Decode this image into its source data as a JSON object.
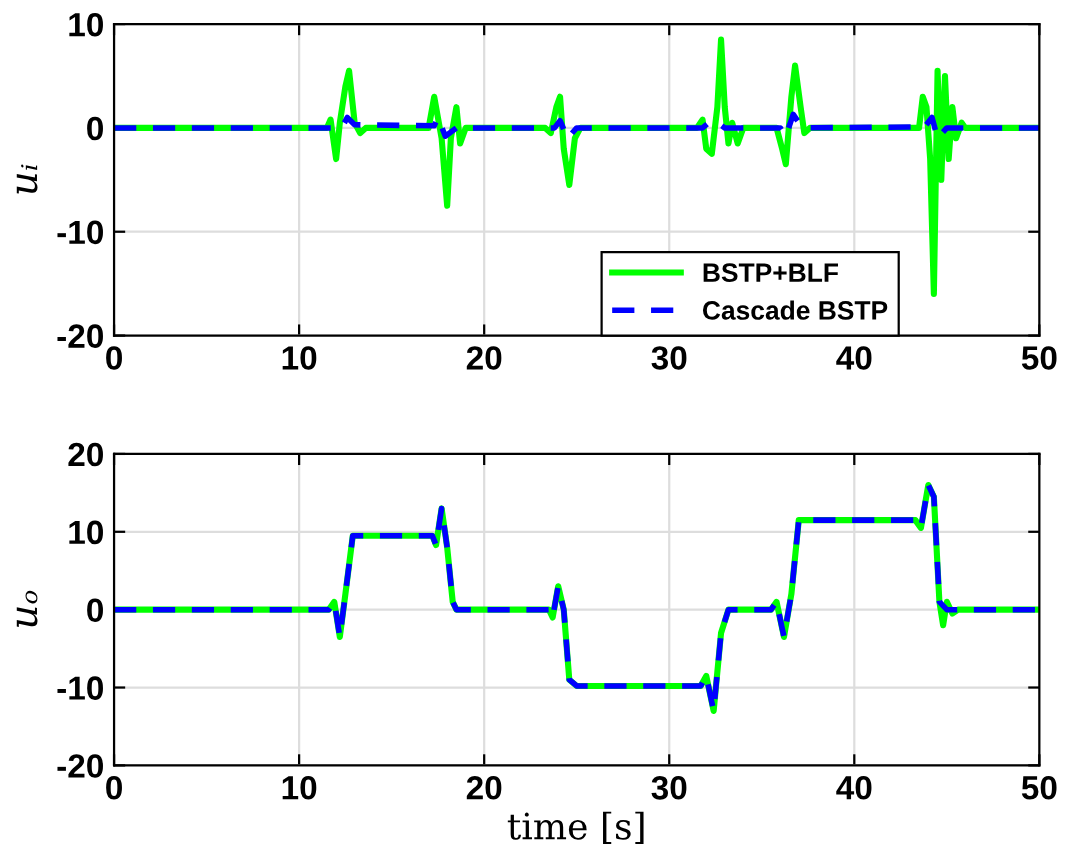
{
  "chart_data": [
    {
      "type": "line",
      "ylabel": "uᵢ",
      "xlim": [
        0,
        50
      ],
      "xticks": [
        0,
        10,
        20,
        30,
        40,
        50
      ],
      "ylim": [
        -20,
        10
      ],
      "yticks": [
        -20,
        -10,
        0,
        10
      ],
      "grid": true,
      "legend": "bottom right",
      "series": [
        {
          "name": "BSTP+BLF",
          "color": "#00ff00",
          "line_style": "solid",
          "x": [
            0,
            11.5,
            11.7,
            12.0,
            12.2,
            12.5,
            12.7,
            13.0,
            13.3,
            13.6,
            17.0,
            17.3,
            17.5,
            17.7,
            18.0,
            18.2,
            18.5,
            18.7,
            19.0,
            23.3,
            23.6,
            23.9,
            24.1,
            24.3,
            24.6,
            24.9,
            25.2,
            31.5,
            31.8,
            32.0,
            32.3,
            32.6,
            32.8,
            33.0,
            33.2,
            33.4,
            33.7,
            34.0,
            35.8,
            36.1,
            36.3,
            36.6,
            36.8,
            37.1,
            37.3,
            37.6,
            43.5,
            43.7,
            43.9,
            44.1,
            44.3,
            44.5,
            44.7,
            44.9,
            45.1,
            45.3,
            45.5,
            45.8,
            46.0,
            50
          ],
          "values": [
            0,
            0,
            0.8,
            -3,
            0.5,
            4,
            5.5,
            0.5,
            -0.5,
            0,
            0,
            3,
            1,
            -1,
            -7.5,
            -1,
            2,
            -1.5,
            0,
            0,
            -0.5,
            2,
            3,
            -2,
            -5.5,
            -1,
            0,
            0,
            0.8,
            -2,
            -2.5,
            2,
            8.5,
            2,
            -1.5,
            0.5,
            -1.5,
            0,
            0,
            -2,
            -3.5,
            3,
            6,
            2,
            -0.5,
            0,
            0,
            3,
            2,
            -3,
            -16,
            5.5,
            -5,
            5,
            -3,
            2,
            -1,
            0.5,
            0,
            0
          ]
        },
        {
          "name": "Cascade BSTP",
          "color": "#0000ff",
          "line_style": "dashed",
          "x": [
            0,
            12.3,
            12.6,
            13.0,
            17.3,
            17.5,
            17.9,
            18.5,
            23.8,
            24.1,
            24.5,
            25.0,
            31.8,
            32.2,
            32.6,
            33.0,
            36.0,
            36.3,
            36.7,
            37.2,
            43.8,
            44.2,
            44.5,
            45.0,
            50
          ],
          "values": [
            0,
            0,
            1,
            0.3,
            0.2,
            1,
            -0.8,
            0,
            0,
            0.7,
            -1,
            0,
            0,
            0.6,
            0.5,
            0,
            0,
            -0.8,
            1.3,
            0,
            0.1,
            1,
            -1,
            0,
            0
          ]
        }
      ]
    },
    {
      "type": "line",
      "ylabel": "uₒ",
      "xlabel": "time [s]",
      "xlim": [
        0,
        50
      ],
      "xticks": [
        0,
        10,
        20,
        30,
        40,
        50
      ],
      "ylim": [
        -20,
        20
      ],
      "yticks": [
        -20,
        -10,
        0,
        10,
        20
      ],
      "grid": true,
      "series": [
        {
          "color": "#00ff00",
          "line_style": "solid",
          "x": [
            0,
            11.6,
            11.9,
            12.2,
            12.5,
            12.9,
            13.5,
            17.2,
            17.4,
            17.7,
            18.0,
            18.3,
            18.5,
            23.5,
            23.7,
            24.0,
            24.3,
            24.6,
            25.0,
            31.7,
            32.0,
            32.4,
            32.8,
            33.2,
            35.5,
            35.8,
            36.2,
            36.6,
            37.0,
            43.3,
            43.6,
            44.0,
            44.3,
            44.6,
            44.8,
            45.0,
            45.3,
            45.6,
            50
          ],
          "values": [
            0,
            0,
            1,
            -3.5,
            2,
            9.5,
            9.5,
            9.5,
            8.3,
            13,
            8,
            1,
            0,
            0,
            -1,
            3,
            0,
            -9,
            -9.8,
            -9.8,
            -8.5,
            -13,
            -3,
            0,
            0,
            1,
            -3.5,
            2,
            11.5,
            11.5,
            10.5,
            16,
            14.5,
            1,
            -2,
            1,
            -0.5,
            0,
            0
          ]
        },
        {
          "color": "#0000ff",
          "line_style": "dashed",
          "x": [
            0,
            11.6,
            11.9,
            12.2,
            12.5,
            12.9,
            13.5,
            17.2,
            17.4,
            17.7,
            18.0,
            18.3,
            18.5,
            23.5,
            23.7,
            24.0,
            24.3,
            24.6,
            25.0,
            31.7,
            32.0,
            32.4,
            32.8,
            33.2,
            35.5,
            35.8,
            36.2,
            36.6,
            37.0,
            43.3,
            43.6,
            44.0,
            44.3,
            44.6,
            45.0,
            50
          ],
          "values": [
            0,
            0,
            1,
            -3.5,
            2,
            9.5,
            9.5,
            9.5,
            8.3,
            13,
            8,
            1,
            0,
            0,
            -1,
            3,
            0,
            -9,
            -9.8,
            -9.8,
            -8.5,
            -13,
            -3,
            0,
            0,
            1,
            -3.5,
            2,
            11.5,
            11.5,
            10.5,
            16,
            14.5,
            1,
            0,
            0
          ]
        }
      ]
    }
  ]
}
